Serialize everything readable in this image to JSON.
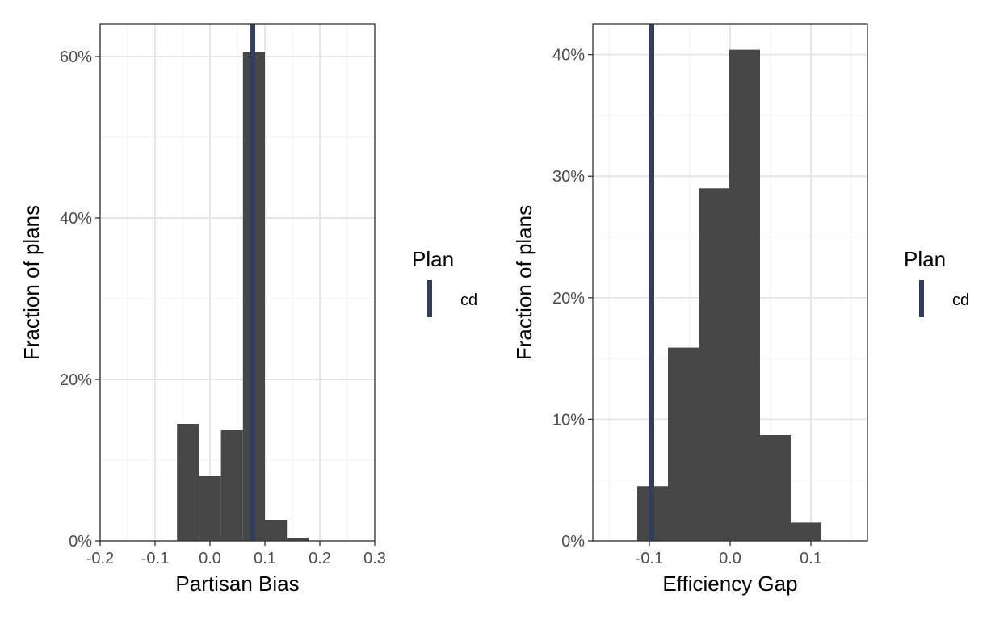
{
  "colors": {
    "bar": "#474747",
    "marker": "#333D5E",
    "grid_major": "#E6E6E6",
    "grid_minor": "#F2F2F2",
    "panel_border": "#333333",
    "tick_text": "#4D4D4D",
    "axis_title": "#000000"
  },
  "chart_data": [
    {
      "type": "bar",
      "xlabel": "Partisan Bias",
      "ylabel": "Fraction of plans",
      "xlim": [
        -0.2,
        0.3
      ],
      "ylim": [
        0,
        0.64
      ],
      "xticks": [
        -0.2,
        -0.1,
        0.0,
        0.1,
        0.2,
        0.3
      ],
      "xtick_labels": [
        "-0.2",
        "-0.1",
        "0.0",
        "0.1",
        "0.2",
        "0.3"
      ],
      "yticks": [
        0,
        0.2,
        0.4,
        0.6
      ],
      "ytick_labels": [
        "0%",
        "20%",
        "40%",
        "60%"
      ],
      "bins": [
        {
          "x0": -0.06,
          "x1": -0.02,
          "value": 0.145
        },
        {
          "x0": -0.02,
          "x1": 0.02,
          "value": 0.08
        },
        {
          "x0": 0.02,
          "x1": 0.06,
          "value": 0.137
        },
        {
          "x0": 0.06,
          "x1": 0.1,
          "value": 0.605
        },
        {
          "x0": 0.1,
          "x1": 0.14,
          "value": 0.026
        },
        {
          "x0": 0.14,
          "x1": 0.18,
          "value": 0.004
        }
      ],
      "reference_line": {
        "name": "cd",
        "x": 0.078
      },
      "legend": {
        "title": "Plan",
        "entries": [
          "cd"
        ],
        "position": "right"
      },
      "grid": true
    },
    {
      "type": "bar",
      "xlabel": "Efficiency Gap",
      "ylabel": "Fraction of plans",
      "xlim": [
        -0.17,
        0.17
      ],
      "ylim": [
        0,
        0.425
      ],
      "xticks": [
        -0.1,
        0.0,
        0.1
      ],
      "xtick_labels": [
        "-0.1",
        "0.0",
        "0.1"
      ],
      "yticks": [
        0,
        0.1,
        0.2,
        0.3,
        0.4
      ],
      "ytick_labels": [
        "0%",
        "10%",
        "20%",
        "30%",
        "40%"
      ],
      "bins": [
        {
          "x0": -0.115,
          "x1": -0.077,
          "value": 0.045
        },
        {
          "x0": -0.077,
          "x1": -0.039,
          "value": 0.159
        },
        {
          "x0": -0.039,
          "x1": -0.001,
          "value": 0.29
        },
        {
          "x0": -0.001,
          "x1": 0.037,
          "value": 0.404
        },
        {
          "x0": 0.037,
          "x1": 0.075,
          "value": 0.087
        },
        {
          "x0": 0.075,
          "x1": 0.113,
          "value": 0.015
        }
      ],
      "reference_line": {
        "name": "cd",
        "x": -0.097
      },
      "legend": {
        "title": "Plan",
        "entries": [
          "cd"
        ],
        "position": "right"
      },
      "grid": true
    }
  ]
}
